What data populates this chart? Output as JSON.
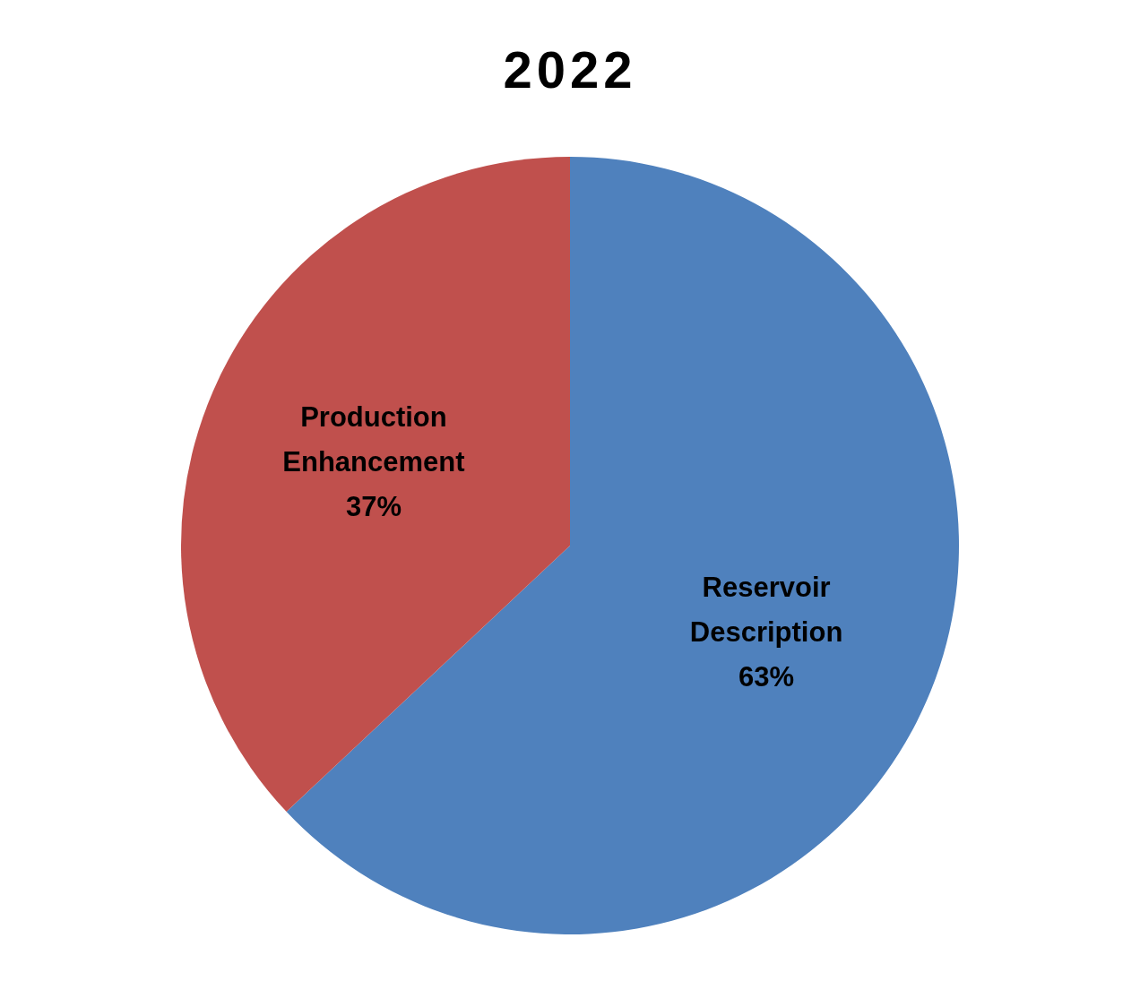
{
  "chart_data": {
    "type": "pie",
    "title": "2022",
    "categories": [
      "Reservoir Description",
      "Production Enhancement"
    ],
    "values": [
      63,
      37
    ],
    "value_labels": [
      "63%",
      "37%"
    ],
    "colors": [
      "#4f81bd",
      "#c0504d"
    ]
  }
}
